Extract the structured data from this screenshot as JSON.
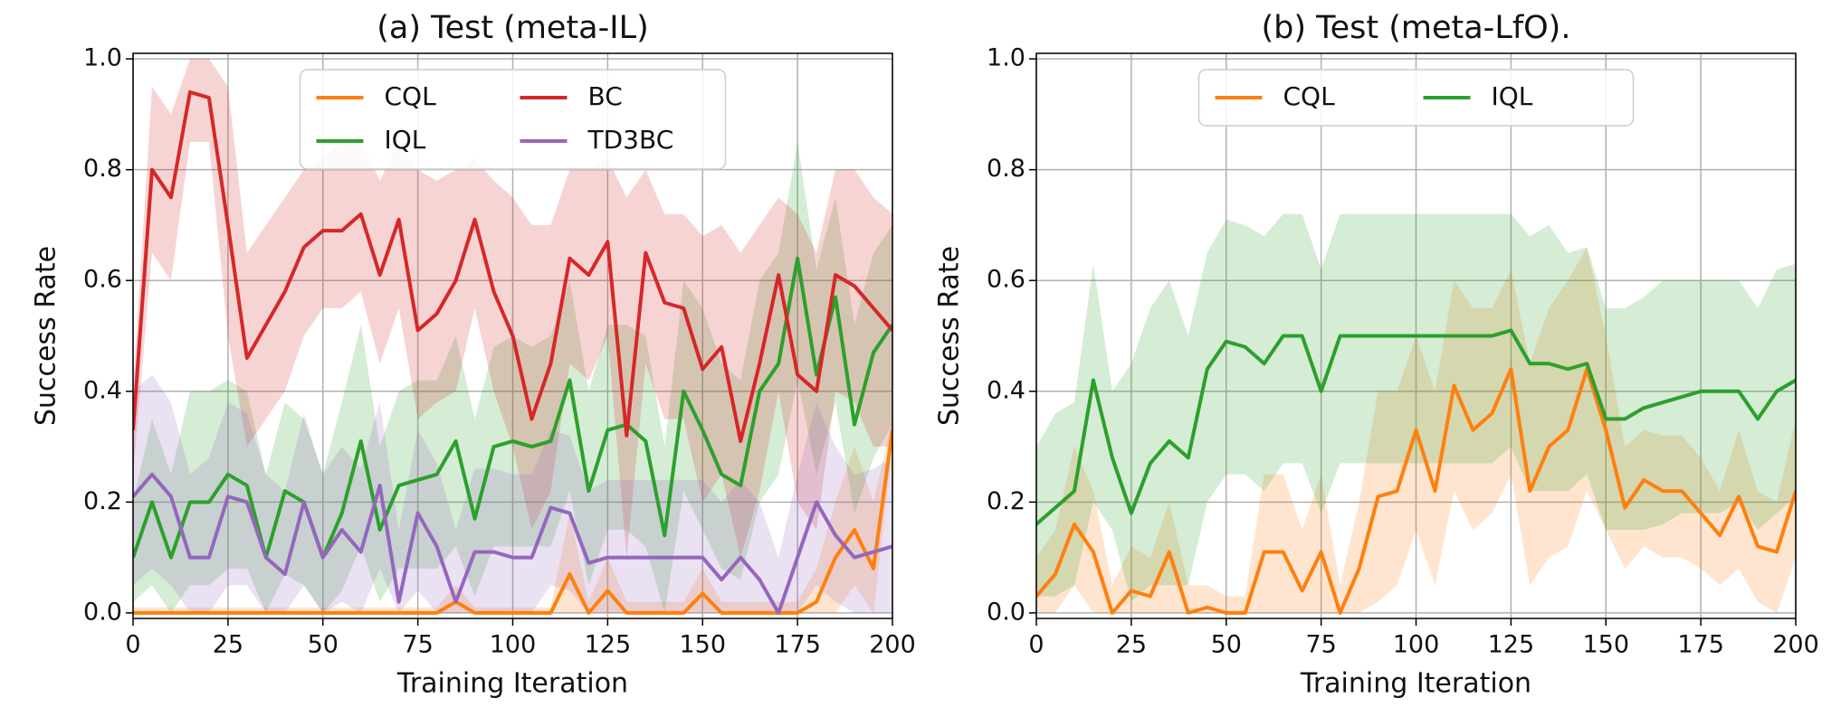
{
  "chart_data": [
    {
      "type": "line",
      "title": "(a)  Test (meta-IL)",
      "x_label": "Training Iteration",
      "y_label": "Success Rate",
      "xlim": [
        0,
        200
      ],
      "ylim": [
        -0.01,
        1.01
      ],
      "xticks": [
        0,
        25,
        50,
        75,
        100,
        125,
        150,
        175,
        200
      ],
      "yticks": [
        {
          "value": 0,
          "label": "0.0"
        },
        0.2,
        0.4,
        0.6,
        0.8,
        {
          "value": 1,
          "label": "1.0"
        }
      ],
      "grid": true,
      "legend": "upper center",
      "legend_columns": 2,
      "x": [
        0,
        5,
        10,
        15,
        20,
        25,
        30,
        35,
        40,
        45,
        50,
        55,
        60,
        65,
        70,
        75,
        80,
        85,
        90,
        95,
        100,
        105,
        110,
        115,
        120,
        125,
        130,
        135,
        140,
        145,
        150,
        155,
        160,
        165,
        170,
        175,
        180,
        185,
        190,
        195,
        200
      ],
      "series": [
        {
          "name": "CQL",
          "color": "#ff7f0e",
          "values": [
            0,
            0,
            0,
            0,
            0,
            0,
            0,
            0,
            0,
            0,
            0,
            0,
            0,
            0,
            0,
            0,
            0,
            0.02,
            0,
            0,
            0,
            0,
            0,
            0.07,
            0,
            0.04,
            0,
            0,
            0,
            0,
            0.035,
            0,
            0,
            0,
            0,
            0,
            0.02,
            0.1,
            0.15,
            0.08,
            0.33
          ],
          "upper": [
            0.01,
            0.01,
            0.01,
            0.01,
            0.01,
            0.01,
            0.01,
            0.01,
            0.01,
            0.01,
            0.01,
            0.01,
            0.01,
            0.01,
            0.01,
            0.01,
            0.01,
            0.05,
            0.01,
            0.01,
            0.01,
            0.01,
            0.01,
            0.18,
            0.02,
            0.1,
            0.02,
            0.02,
            0.02,
            0.02,
            0.08,
            0.02,
            0.02,
            0.02,
            0.02,
            0.02,
            0.08,
            0.2,
            0.3,
            0.2,
            0.35
          ],
          "lower": [
            0,
            0,
            0,
            0,
            0,
            0,
            0,
            0,
            0,
            0,
            0,
            0,
            0,
            0,
            0,
            0,
            0,
            0,
            0,
            0,
            0,
            0,
            0,
            0,
            0,
            0,
            0,
            0,
            0,
            0,
            0,
            0,
            0,
            0,
            0,
            0,
            0,
            0,
            0.05,
            0,
            0.3
          ]
        },
        {
          "name": "IQL",
          "color": "#2ca02c",
          "values": [
            0.1,
            0.2,
            0.1,
            0.2,
            0.2,
            0.25,
            0.23,
            0.1,
            0.22,
            0.2,
            0.1,
            0.18,
            0.31,
            0.15,
            0.23,
            0.24,
            0.25,
            0.31,
            0.17,
            0.3,
            0.31,
            0.3,
            0.31,
            0.42,
            0.22,
            0.33,
            0.34,
            0.31,
            0.14,
            0.4,
            0.33,
            0.25,
            0.23,
            0.4,
            0.45,
            0.64,
            0.43,
            0.57,
            0.34,
            0.47,
            0.52
          ],
          "upper": [
            0.2,
            0.35,
            0.25,
            0.4,
            0.4,
            0.42,
            0.4,
            0.25,
            0.38,
            0.35,
            0.25,
            0.38,
            0.52,
            0.3,
            0.4,
            0.42,
            0.42,
            0.5,
            0.35,
            0.48,
            0.5,
            0.48,
            0.5,
            0.6,
            0.4,
            0.52,
            0.52,
            0.5,
            0.3,
            0.6,
            0.55,
            0.45,
            0.42,
            0.6,
            0.65,
            0.85,
            0.62,
            0.75,
            0.52,
            0.65,
            0.7
          ],
          "lower": [
            0.02,
            0.05,
            0,
            0.05,
            0.05,
            0.08,
            0.08,
            0,
            0.07,
            0.05,
            0,
            0.04,
            0.12,
            0.02,
            0.08,
            0.08,
            0.08,
            0.12,
            0.03,
            0.12,
            0.12,
            0.12,
            0.12,
            0.22,
            0.05,
            0.15,
            0.15,
            0.12,
            0,
            0.22,
            0.15,
            0.08,
            0.06,
            0.2,
            0.25,
            0.42,
            0.25,
            0.38,
            0.18,
            0.28,
            0.34
          ]
        },
        {
          "name": "BC",
          "color": "#d62728",
          "values": [
            0.33,
            0.8,
            0.75,
            0.94,
            0.93,
            0.7,
            0.46,
            0.52,
            0.58,
            0.66,
            0.69,
            0.69,
            0.72,
            0.61,
            0.71,
            0.51,
            0.54,
            0.6,
            0.71,
            0.58,
            0.5,
            0.35,
            0.45,
            0.64,
            0.61,
            0.67,
            0.32,
            0.65,
            0.56,
            0.55,
            0.44,
            0.48,
            0.31,
            0.45,
            0.61,
            0.43,
            0.4,
            0.61,
            0.59,
            0.55,
            0.51
          ],
          "upper": [
            0.4,
            0.95,
            0.9,
            1.0,
            1.0,
            0.95,
            0.65,
            0.7,
            0.75,
            0.8,
            0.82,
            0.85,
            0.85,
            0.78,
            0.85,
            0.8,
            0.78,
            0.8,
            0.82,
            0.78,
            0.75,
            0.7,
            0.7,
            0.8,
            0.8,
            0.82,
            0.75,
            0.8,
            0.72,
            0.72,
            0.68,
            0.7,
            0.65,
            0.7,
            0.75,
            0.72,
            0.65,
            0.8,
            0.8,
            0.75,
            0.72
          ],
          "lower": [
            0.25,
            0.65,
            0.6,
            0.85,
            0.85,
            0.5,
            0.3,
            0.35,
            0.4,
            0.5,
            0.55,
            0.55,
            0.58,
            0.45,
            0.55,
            0.35,
            0.38,
            0.4,
            0.55,
            0.4,
            0.3,
            0.15,
            0.22,
            0.45,
            0.42,
            0.5,
            0.1,
            0.45,
            0.35,
            0.35,
            0.2,
            0.25,
            0.1,
            0.22,
            0.4,
            0.2,
            0.15,
            0.4,
            0.38,
            0.3,
            0.3
          ]
        },
        {
          "name": "TD3BC",
          "color": "#9467bd",
          "values": [
            0.21,
            0.25,
            0.21,
            0.1,
            0.1,
            0.21,
            0.2,
            0.1,
            0.07,
            0.2,
            0.1,
            0.15,
            0.11,
            0.23,
            0.02,
            0.18,
            0.12,
            0.02,
            0.11,
            0.11,
            0.1,
            0.1,
            0.19,
            0.18,
            0.09,
            0.1,
            0.1,
            0.1,
            0.1,
            0.1,
            0.1,
            0.06,
            0.1,
            0.06,
            0,
            0.1,
            0.2,
            0.14,
            0.1,
            0.11,
            0.12
          ],
          "upper": [
            0.4,
            0.43,
            0.38,
            0.25,
            0.28,
            0.38,
            0.36,
            0.25,
            0.22,
            0.36,
            0.25,
            0.3,
            0.26,
            0.38,
            0.15,
            0.33,
            0.27,
            0.15,
            0.26,
            0.26,
            0.25,
            0.25,
            0.33,
            0.32,
            0.22,
            0.24,
            0.24,
            0.24,
            0.24,
            0.24,
            0.24,
            0.2,
            0.24,
            0.2,
            0.1,
            0.25,
            0.38,
            0.3,
            0.25,
            0.26,
            0.28
          ],
          "lower": [
            0.05,
            0.08,
            0.05,
            0,
            0,
            0.05,
            0.05,
            0,
            0,
            0.05,
            0,
            0.02,
            0,
            0.08,
            0,
            0.04,
            0,
            0,
            0,
            0,
            0,
            0,
            0.05,
            0.04,
            0,
            0,
            0,
            0,
            0,
            0,
            0,
            0,
            0,
            0,
            0,
            0,
            0.05,
            0.02,
            0,
            0,
            0
          ]
        }
      ]
    },
    {
      "type": "line",
      "title": "(b) Test (meta-LfO).",
      "x_label": "Training Iteration",
      "y_label": "Success Rate",
      "xlim": [
        0,
        200
      ],
      "ylim": [
        -0.01,
        1.01
      ],
      "xticks": [
        0,
        25,
        50,
        75,
        100,
        125,
        150,
        175,
        200
      ],
      "yticks": [
        {
          "value": 0,
          "label": "0.0"
        },
        0.2,
        0.4,
        0.6,
        0.8,
        {
          "value": 1,
          "label": "1.0"
        }
      ],
      "grid": true,
      "legend": "upper center",
      "legend_columns": 2,
      "x": [
        0,
        5,
        10,
        15,
        20,
        25,
        30,
        35,
        40,
        45,
        50,
        55,
        60,
        65,
        70,
        75,
        80,
        85,
        90,
        95,
        100,
        105,
        110,
        115,
        120,
        125,
        130,
        135,
        140,
        145,
        150,
        155,
        160,
        165,
        170,
        175,
        180,
        185,
        190,
        195,
        200
      ],
      "series": [
        {
          "name": "CQL",
          "color": "#ff7f0e",
          "values": [
            0.03,
            0.07,
            0.16,
            0.11,
            0,
            0.04,
            0.03,
            0.11,
            0,
            0.01,
            0,
            0,
            0.11,
            0.11,
            0.04,
            0.11,
            0,
            0.08,
            0.21,
            0.22,
            0.33,
            0.22,
            0.41,
            0.33,
            0.36,
            0.44,
            0.22,
            0.3,
            0.33,
            0.44,
            0.33,
            0.19,
            0.24,
            0.22,
            0.22,
            0.18,
            0.14,
            0.21,
            0.12,
            0.11,
            0.22
          ],
          "upper": [
            0.1,
            0.15,
            0.3,
            0.22,
            0.05,
            0.12,
            0.1,
            0.2,
            0.05,
            0.05,
            0.03,
            0.03,
            0.25,
            0.25,
            0.15,
            0.25,
            0.05,
            0.2,
            0.4,
            0.4,
            0.5,
            0.4,
            0.6,
            0.55,
            0.55,
            0.62,
            0.45,
            0.55,
            0.6,
            0.66,
            0.5,
            0.3,
            0.33,
            0.32,
            0.32,
            0.28,
            0.22,
            0.33,
            0.22,
            0.2,
            0.35
          ],
          "lower": [
            0,
            0,
            0.05,
            0,
            0,
            0,
            0,
            0,
            0,
            0,
            0,
            0,
            0,
            0,
            0,
            0,
            0,
            0,
            0.02,
            0.05,
            0.15,
            0.05,
            0.22,
            0.15,
            0.18,
            0.25,
            0.05,
            0.1,
            0.12,
            0.22,
            0.15,
            0.08,
            0.12,
            0.1,
            0.1,
            0.08,
            0.05,
            0.08,
            0.02,
            0,
            0.1
          ]
        },
        {
          "name": "IQL",
          "color": "#2ca02c",
          "values": [
            0.16,
            0.19,
            0.22,
            0.42,
            0.28,
            0.18,
            0.27,
            0.31,
            0.28,
            0.44,
            0.49,
            0.48,
            0.45,
            0.5,
            0.5,
            0.4,
            0.5,
            0.5,
            0.5,
            0.5,
            0.5,
            0.5,
            0.5,
            0.5,
            0.5,
            0.51,
            0.45,
            0.45,
            0.44,
            0.45,
            0.35,
            0.35,
            0.37,
            0.38,
            0.39,
            0.4,
            0.4,
            0.4,
            0.35,
            0.4,
            0.42
          ],
          "upper": [
            0.3,
            0.36,
            0.38,
            0.63,
            0.4,
            0.45,
            0.55,
            0.6,
            0.5,
            0.65,
            0.71,
            0.7,
            0.68,
            0.72,
            0.72,
            0.62,
            0.72,
            0.72,
            0.72,
            0.72,
            0.72,
            0.72,
            0.72,
            0.72,
            0.72,
            0.72,
            0.68,
            0.7,
            0.65,
            0.66,
            0.55,
            0.55,
            0.57,
            0.6,
            0.6,
            0.6,
            0.6,
            0.6,
            0.55,
            0.62,
            0.63
          ],
          "lower": [
            0.03,
            0.03,
            0.05,
            0.2,
            0.15,
            0.02,
            0.05,
            0.05,
            0.05,
            0.2,
            0.25,
            0.25,
            0.22,
            0.27,
            0.27,
            0.18,
            0.27,
            0.27,
            0.27,
            0.27,
            0.27,
            0.27,
            0.27,
            0.27,
            0.27,
            0.3,
            0.22,
            0.22,
            0.22,
            0.25,
            0.15,
            0.15,
            0.15,
            0.16,
            0.18,
            0.18,
            0.18,
            0.2,
            0.15,
            0.18,
            0.21
          ]
        }
      ]
    }
  ]
}
